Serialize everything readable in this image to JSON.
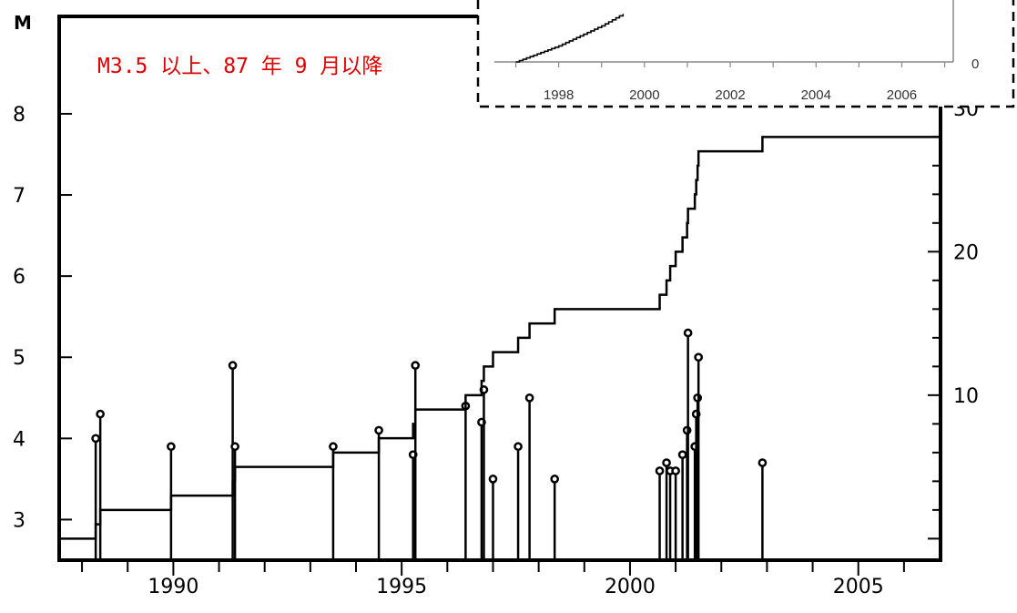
{
  "chart_data": [
    {
      "type": "line",
      "title": "",
      "annotation": "M3.5 以上、87 年 9 月以降",
      "ylabel_left": "M",
      "xlim": [
        1987.5,
        2006.8
      ],
      "ylim_left": [
        2.5,
        9.2
      ],
      "ylim_right": [
        -1.5,
        36.4
      ],
      "x_ticks": [
        1990,
        1995,
        2000,
        2005
      ],
      "y_ticks_left": [
        3,
        4,
        5,
        6,
        7,
        8
      ],
      "y_ticks_right": [
        10,
        20,
        30
      ],
      "grid": false,
      "series": [
        {
          "type": "stem",
          "values": [
            {
              "x": 1988.3,
              "y": 4.0
            },
            {
              "x": 1988.4,
              "y": 4.3
            },
            {
              "x": 1989.95,
              "y": 3.9
            },
            {
              "x": 1991.3,
              "y": 4.9
            },
            {
              "x": 1991.35,
              "y": 3.9
            },
            {
              "x": 1993.5,
              "y": 3.9
            },
            {
              "x": 1994.5,
              "y": 4.1
            },
            {
              "x": 1995.25,
              "y": 3.8
            },
            {
              "x": 1995.3,
              "y": 4.9
            },
            {
              "x": 1996.4,
              "y": 4.4
            },
            {
              "x": 1996.75,
              "y": 4.2
            },
            {
              "x": 1996.8,
              "y": 4.6
            },
            {
              "x": 1997.0,
              "y": 3.5
            },
            {
              "x": 1997.55,
              "y": 3.9
            },
            {
              "x": 1997.8,
              "y": 4.5
            },
            {
              "x": 1998.35,
              "y": 3.5
            },
            {
              "x": 2000.65,
              "y": 3.6
            },
            {
              "x": 2000.8,
              "y": 3.7
            },
            {
              "x": 2000.88,
              "y": 3.6
            },
            {
              "x": 2001.0,
              "y": 3.6
            },
            {
              "x": 2001.15,
              "y": 3.8
            },
            {
              "x": 2001.25,
              "y": 4.1
            },
            {
              "x": 2001.27,
              "y": 5.3
            },
            {
              "x": 2001.42,
              "y": 3.9
            },
            {
              "x": 2001.45,
              "y": 4.3
            },
            {
              "x": 2001.48,
              "y": 4.5
            },
            {
              "x": 2001.5,
              "y": 5.0
            },
            {
              "x": 2002.9,
              "y": 3.7
            }
          ]
        },
        {
          "type": "step",
          "axis": "right",
          "values": [
            {
              "x": 1987.5,
              "y": 0
            },
            {
              "x": 1988.3,
              "y": 1
            },
            {
              "x": 1988.4,
              "y": 2
            },
            {
              "x": 1989.95,
              "y": 3
            },
            {
              "x": 1991.3,
              "y": 4
            },
            {
              "x": 1991.35,
              "y": 5
            },
            {
              "x": 1993.5,
              "y": 6
            },
            {
              "x": 1994.5,
              "y": 7
            },
            {
              "x": 1995.25,
              "y": 8
            },
            {
              "x": 1995.3,
              "y": 9
            },
            {
              "x": 1996.4,
              "y": 10
            },
            {
              "x": 1996.75,
              "y": 11
            },
            {
              "x": 1996.8,
              "y": 12
            },
            {
              "x": 1997.0,
              "y": 13
            },
            {
              "x": 1997.55,
              "y": 14
            },
            {
              "x": 1997.8,
              "y": 15
            },
            {
              "x": 1998.35,
              "y": 16
            },
            {
              "x": 2000.65,
              "y": 17
            },
            {
              "x": 2000.8,
              "y": 18
            },
            {
              "x": 2000.88,
              "y": 19
            },
            {
              "x": 2001.0,
              "y": 20
            },
            {
              "x": 2001.15,
              "y": 21
            },
            {
              "x": 2001.25,
              "y": 22
            },
            {
              "x": 2001.27,
              "y": 23
            },
            {
              "x": 2001.42,
              "y": 24
            },
            {
              "x": 2001.45,
              "y": 25
            },
            {
              "x": 2001.48,
              "y": 26
            },
            {
              "x": 2001.5,
              "y": 27
            },
            {
              "x": 2002.9,
              "y": 28
            },
            {
              "x": 2006.8,
              "y": 28
            }
          ]
        }
      ]
    },
    {
      "type": "line",
      "title": "",
      "xlim": [
        1996.5,
        2007.2
      ],
      "x_ticks": [
        1998,
        2000,
        2002,
        2004,
        2006
      ],
      "y_ticks_right": [
        0
      ],
      "series": [
        {
          "type": "step",
          "values": [
            {
              "x": 1997.0,
              "y": 0
            },
            {
              "x": 1997.5,
              "y": 4
            },
            {
              "x": 1998.0,
              "y": 8
            },
            {
              "x": 1998.5,
              "y": 13
            },
            {
              "x": 1999.0,
              "y": 18
            },
            {
              "x": 1999.5,
              "y": 24
            }
          ]
        }
      ]
    }
  ]
}
